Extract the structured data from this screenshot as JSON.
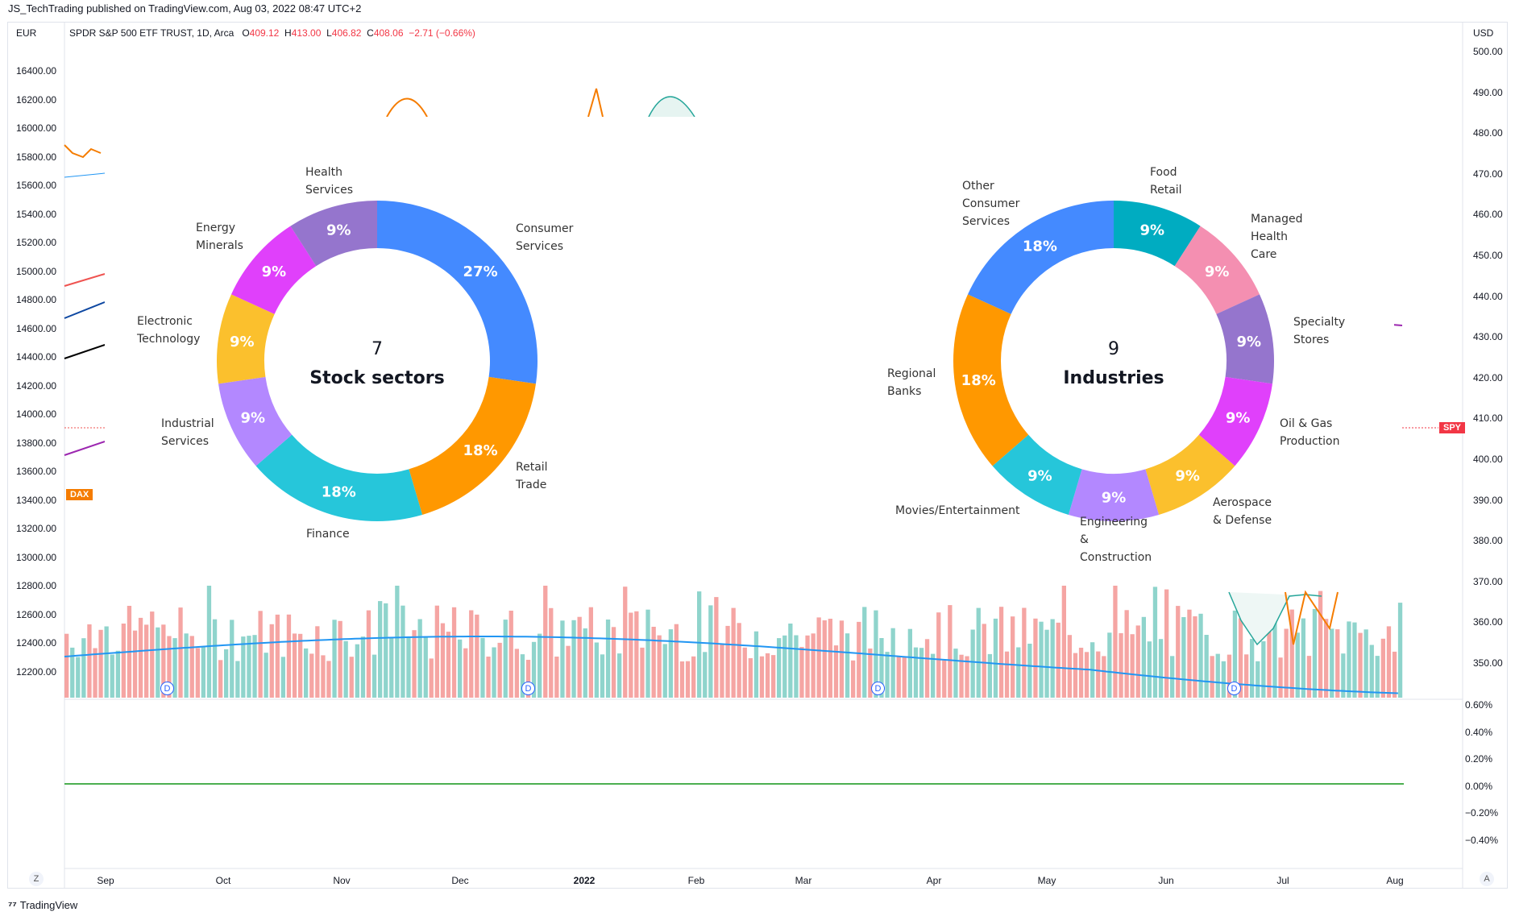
{
  "header": {
    "publisher_line": "JS_TechTrading published on TradingView.com, Aug 03, 2022 08:47 UTC+2"
  },
  "symbol": {
    "name": "SPDR S&P 500 ETF TRUST, 1D, Arca",
    "open_label": "O",
    "open": "409.12",
    "high_label": "H",
    "high": "413.00",
    "low_label": "L",
    "low": "406.82",
    "close_label": "C",
    "close": "408.06",
    "change": "−2.71 (−0.66%)"
  },
  "left_axis": {
    "currency": "EUR",
    "ticks": [
      "16400.00",
      "16200.00",
      "16000.00",
      "15800.00",
      "15600.00",
      "15400.00",
      "15200.00",
      "15000.00",
      "14800.00",
      "14600.00",
      "14400.00",
      "14200.00",
      "14000.00",
      "13800.00",
      "13600.00",
      "13400.00",
      "13200.00",
      "13000.00",
      "12800.00",
      "12600.00",
      "12400.00",
      "12200.00"
    ],
    "tag": "DAX"
  },
  "right_axis": {
    "currency": "USD",
    "ticks": [
      "500.00",
      "490.00",
      "480.00",
      "470.00",
      "460.00",
      "450.00",
      "440.00",
      "430.00",
      "420.00",
      "410.00",
      "400.00",
      "390.00",
      "380.00",
      "370.00",
      "360.00",
      "350.00"
    ],
    "tag": "SPY"
  },
  "pct_axis": {
    "ticks": [
      "0.60%",
      "0.40%",
      "0.20%",
      "0.00%",
      "−0.20%",
      "−0.40%"
    ]
  },
  "time_axis": {
    "labels": [
      "Sep",
      "Oct",
      "Nov",
      "Dec",
      "2022",
      "Feb",
      "Mar",
      "Apr",
      "May",
      "Jun",
      "Jul",
      "Aug"
    ],
    "bold_index": 4,
    "left_button": "Z",
    "right_button": "A"
  },
  "dividend_marker": "D",
  "colors": {
    "up": "#26a69a",
    "down": "#ef5350",
    "sma": "#2196f3",
    "green_line": "#4caf50",
    "dax": "#f57c00",
    "spy": "#f23645"
  },
  "chart_data": [
    {
      "type": "pie",
      "center_number": "7",
      "center_text": "Stock sectors",
      "categories": [
        "Consumer Services",
        "Retail Trade",
        "Finance",
        "Industrial Services",
        "Electronic Technology",
        "Energy Minerals",
        "Health Services"
      ],
      "values": [
        27,
        18,
        18,
        9,
        9,
        9,
        9
      ],
      "labels": [
        "27%",
        "18%",
        "18%",
        "9%",
        "9%",
        "9%",
        "9%"
      ],
      "colors": [
        "#448aff",
        "#ff9800",
        "#26c6da",
        "#b388ff",
        "#fbc02d",
        "#e040fb",
        "#9575cd"
      ]
    },
    {
      "type": "pie",
      "center_number": "9",
      "center_text": "Industries",
      "categories": [
        "Food Retail",
        "Managed Health Care",
        "Specialty Stores",
        "Oil & Gas Production",
        "Aerospace & Defense",
        "Engineering & Construction",
        "Movies/Entertainment",
        "Regional Banks",
        "Other Consumer Services"
      ],
      "values": [
        9,
        9,
        9,
        9,
        9,
        9,
        9,
        18,
        18
      ],
      "labels": [
        "9%",
        "9%",
        "9%",
        "9%",
        "9%",
        "9%",
        "9%",
        "18%",
        "18%"
      ],
      "colors": [
        "#00acc1",
        "#f48fb1",
        "#9575cd",
        "#e040fb",
        "#fbc02d",
        "#b388ff",
        "#26c6da",
        "#ff9800",
        "#448aff"
      ]
    }
  ],
  "footer": {
    "brand": "TradingView"
  }
}
